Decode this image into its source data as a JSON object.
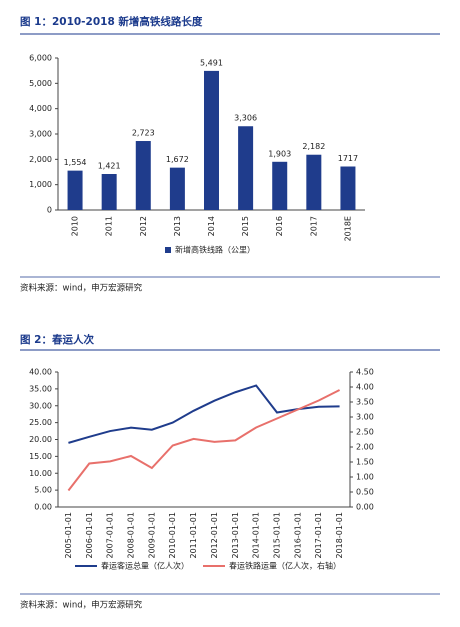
{
  "chart_data": [
    {
      "type": "bar",
      "title": "图 1：2010-2018 新增高铁线路长度",
      "categories": [
        "2010",
        "2011",
        "2012",
        "2013",
        "2014",
        "2015",
        "2016",
        "2017",
        "2018E"
      ],
      "series": [
        {
          "name": "新增高铁线路（公里）",
          "color": "#1f3c8c",
          "values": [
            1554,
            1421,
            2723,
            1672,
            5491,
            3306,
            1903,
            2182,
            1717
          ],
          "value_labels": [
            "1,554",
            "1,421",
            "2,723",
            "1,672",
            "5,491",
            "3,306",
            "1,903",
            "2,182",
            "1717"
          ]
        }
      ],
      "ylim": [
        0,
        6000
      ],
      "yticks": [
        0,
        {
          "value": 1000,
          "label": "1,000"
        },
        {
          "value": 2000,
          "label": "2,000"
        },
        {
          "value": 3000,
          "label": "3,000"
        },
        {
          "value": 4000,
          "label": "4,000"
        },
        {
          "value": 5000,
          "label": "5,000"
        },
        {
          "value": 6000,
          "label": "6,000"
        }
      ],
      "source": "资料来源：wind，申万宏源研究"
    },
    {
      "type": "line",
      "title": "图 2：春运人次",
      "x": [
        "2005-01-01",
        "2006-01-01",
        "2007-01-01",
        "2008-01-01",
        "2009-01-01",
        "2010-01-01",
        "2011-01-01",
        "2012-01-01",
        "2013-01-01",
        "2014-01-01",
        "2015-01-01",
        "2016-01-01",
        "2017-01-01",
        "2018-01-01"
      ],
      "series": [
        {
          "name": "春运客运总量（亿人次）",
          "color": "#1f3c8c",
          "values": [
            19,
            20.8,
            22.5,
            23.5,
            22.9,
            25,
            28.5,
            31.5,
            34,
            36,
            28,
            29,
            29.7,
            29.8
          ]
        },
        {
          "name": "春运铁路运量（亿人次，右轴）",
          "color": "#e8706b",
          "axis": "y2",
          "values": [
            0.55,
            1.45,
            1.52,
            1.7,
            1.3,
            2.05,
            2.27,
            2.17,
            2.22,
            2.65,
            2.95,
            3.25,
            3.55,
            3.9
          ]
        }
      ],
      "ylim": [
        0,
        40
      ],
      "yticks": [
        {
          "value": 0,
          "label": "0.00"
        },
        {
          "value": 5,
          "label": "5.00"
        },
        {
          "value": 10,
          "label": "10.00"
        },
        {
          "value": 15,
          "label": "15.00"
        },
        {
          "value": 20,
          "label": "20.00"
        },
        {
          "value": 25,
          "label": "25.00"
        },
        {
          "value": 30,
          "label": "30.00"
        },
        {
          "value": 35,
          "label": "35.00"
        },
        {
          "value": 40,
          "label": "40.00"
        }
      ],
      "y2lim": [
        0,
        4.5
      ],
      "y2ticks": [
        {
          "value": 0,
          "label": "0.00"
        },
        {
          "value": 0.5,
          "label": "0.50"
        },
        {
          "value": 1,
          "label": "1.00"
        },
        {
          "value": 1.5,
          "label": "1.50"
        },
        {
          "value": 2,
          "label": "2.00"
        },
        {
          "value": 2.5,
          "label": "2.50"
        },
        {
          "value": 3,
          "label": "3.00"
        },
        {
          "value": 3.5,
          "label": "3.50"
        },
        {
          "value": 4,
          "label": "4.00"
        },
        {
          "value": 4.5,
          "label": "4.50"
        }
      ],
      "source": "资料来源：wind，申万宏源研究"
    }
  ]
}
